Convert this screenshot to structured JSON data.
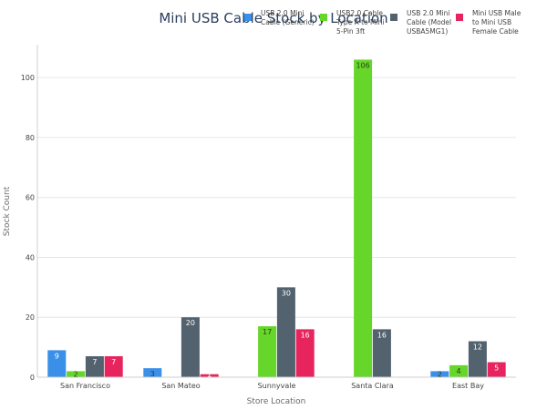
{
  "chart_data": {
    "type": "bar",
    "title": "Mini USB Cable Stock by Location",
    "xlabel": "Store Location",
    "ylabel": "Stock Count",
    "categories": [
      "San Francisco",
      "San Mateo",
      "Sunnyvale",
      "Santa Clara",
      "East Bay"
    ],
    "ylim": [
      0,
      111
    ],
    "yticks": [
      0,
      20,
      40,
      60,
      80,
      100
    ],
    "grid": true,
    "legend_position": "top",
    "series": [
      {
        "name": "USB 2.0 Mini Cable (Generic)",
        "color": "#3a8fe8",
        "values": [
          9,
          3,
          null,
          null,
          2
        ],
        "labels": [
          "9",
          "3",
          "",
          "",
          "2"
        ]
      },
      {
        "name": "USB2.0 Cable Type A to Mini 5-Pin 3ft",
        "color": "#66d62a",
        "values": [
          2,
          null,
          17,
          106,
          4
        ],
        "labels": [
          "2",
          "",
          "17",
          "106",
          "4"
        ]
      },
      {
        "name": "USB 2.0 Mini Cable (Model USBA5MG1)",
        "color": "#52626e",
        "values": [
          7,
          20,
          30,
          16,
          12
        ],
        "labels": [
          "7",
          "20",
          "30",
          "16",
          "12"
        ]
      },
      {
        "name": "Mini USB Male to Mini USB Female Cable",
        "color": "#e8245e",
        "values": [
          7,
          1,
          16,
          null,
          5
        ],
        "labels": [
          "7",
          "1",
          "16",
          "",
          "5"
        ]
      }
    ]
  }
}
